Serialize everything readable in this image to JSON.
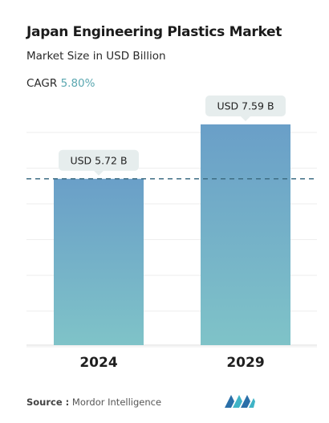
{
  "title": "Japan Engineering Plastics Market",
  "subtitle": "Market Size in USD Billion",
  "cagr_label": "CAGR",
  "cagr_value": "5.80%",
  "source_label": "Source :",
  "source_value": "Mordor Intelligence",
  "colors": {
    "bar_top": "#6a9fc8",
    "bar_bottom": "#7fc3c8",
    "callout": "#e6eded",
    "dash_line": "#3f6e84"
  },
  "chart_data": {
    "type": "bar",
    "categories": [
      "2024",
      "2029"
    ],
    "values": [
      5.72,
      7.59
    ],
    "data_labels": [
      "USD 5.72 B",
      "USD 7.59 B"
    ],
    "title": "Japan Engineering Plastics Market",
    "subtitle": "Market Size in USD Billion",
    "ylim": [
      0,
      7.59
    ],
    "reference_line": 5.72,
    "grid": true
  }
}
